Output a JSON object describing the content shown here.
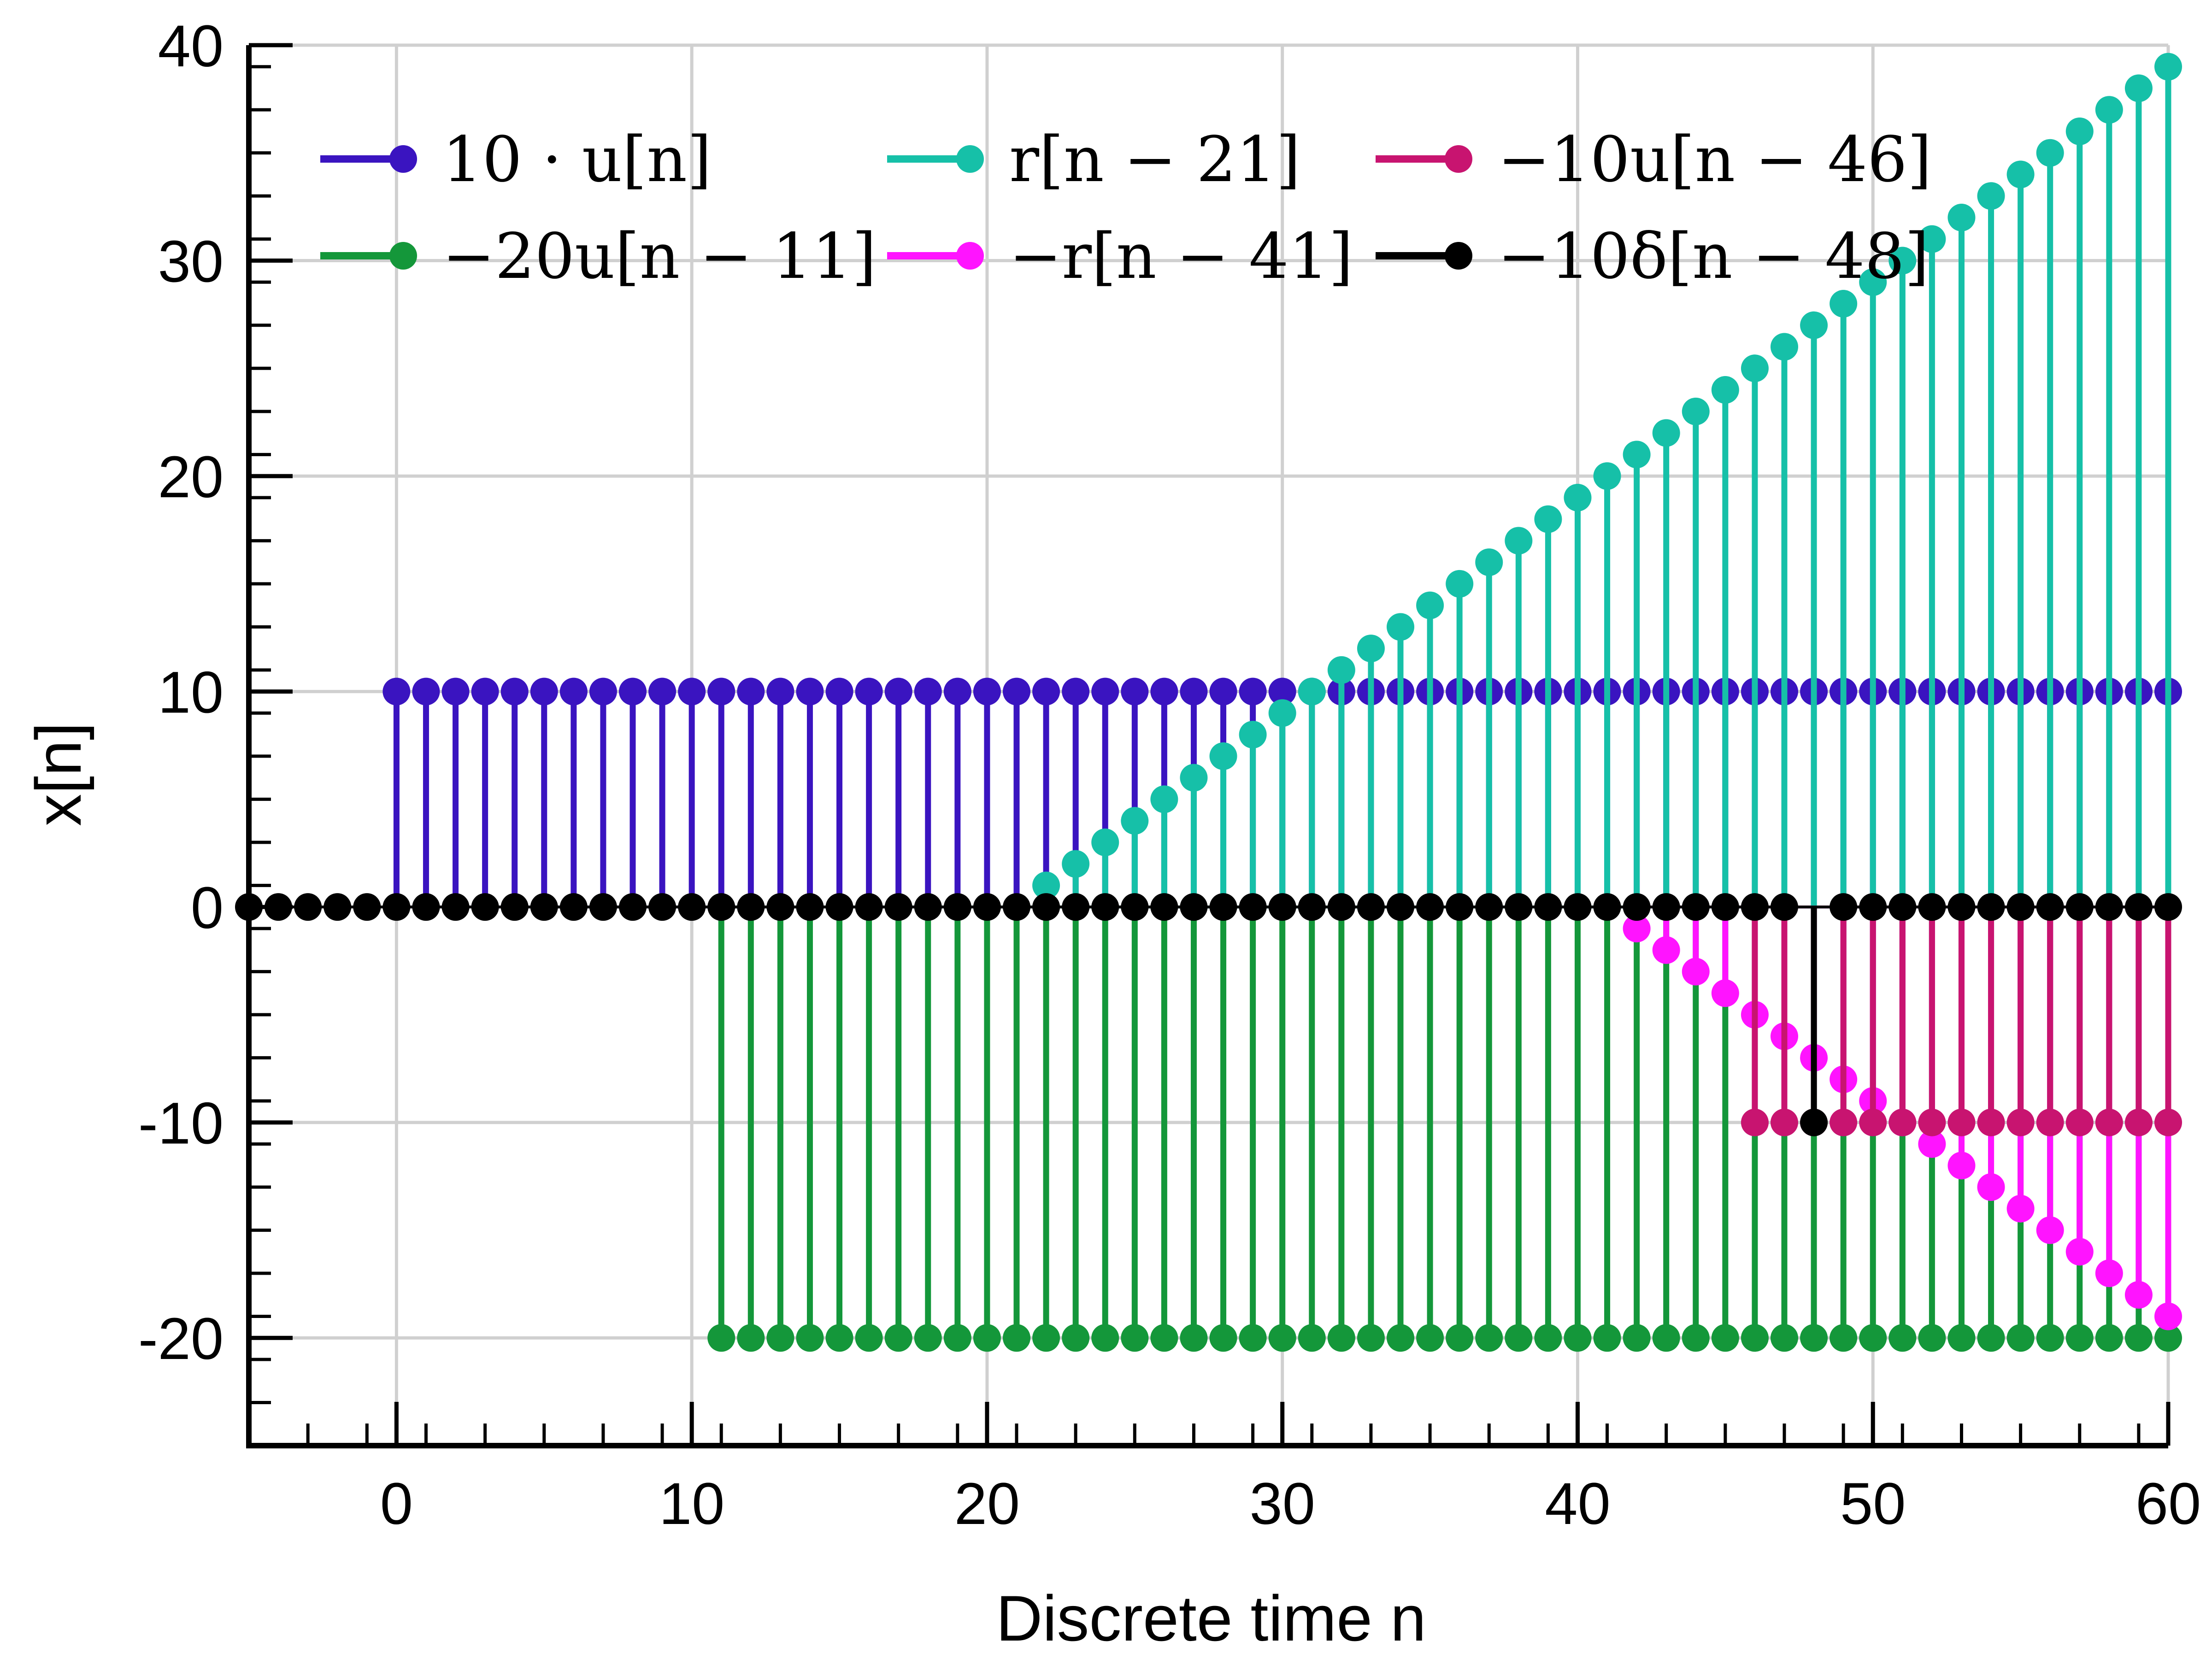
{
  "chart_data": {
    "type": "stem",
    "xlabel": "Discrete time n",
    "ylabel": "x[n]",
    "xlim": [
      -5,
      60
    ],
    "ylim": [
      -25,
      40
    ],
    "x_ticks": [
      0,
      10,
      20,
      30,
      40,
      50,
      60
    ],
    "x_tick_labels": [
      "0",
      "10",
      "20",
      "30",
      "40",
      "50",
      "60"
    ],
    "y_ticks": [
      -20,
      -10,
      0,
      10,
      20,
      30,
      40
    ],
    "y_tick_labels": [
      "-20",
      "-10",
      "0",
      "10",
      "20",
      "30",
      "40"
    ],
    "x_minor_step": 2,
    "y_minor_step": 2,
    "grid": true,
    "legend_position": "top",
    "legend_columns": 3,
    "series": [
      {
        "name": "10 · u[n]",
        "color": "#3a14c0",
        "kind": "step",
        "scale": 10,
        "shift": 0,
        "n_start": 0,
        "n_end": 60
      },
      {
        "name": "−20u[n − 11]",
        "color": "#14973a",
        "kind": "step",
        "scale": -20,
        "shift": 11,
        "n_start": 11,
        "n_end": 60
      },
      {
        "name": "r[n − 21]",
        "color": "#16c0a8",
        "kind": "ramp",
        "scale": 1,
        "shift": 21,
        "n_start": 22,
        "n_end": 60
      },
      {
        "name": "−r[n − 41]",
        "color": "#ff14ff",
        "kind": "ramp",
        "scale": -1,
        "shift": 41,
        "n_start": 42,
        "n_end": 60
      },
      {
        "name": "−10u[n − 46]",
        "color": "#c81470",
        "kind": "step",
        "scale": -10,
        "shift": 46,
        "n_start": 46,
        "n_end": 60
      },
      {
        "name": "−10δ[n − 48]",
        "color": "#000000",
        "kind": "impulse",
        "scale": -10,
        "shift": 48,
        "n_start": -5,
        "n_end": 60
      }
    ]
  }
}
